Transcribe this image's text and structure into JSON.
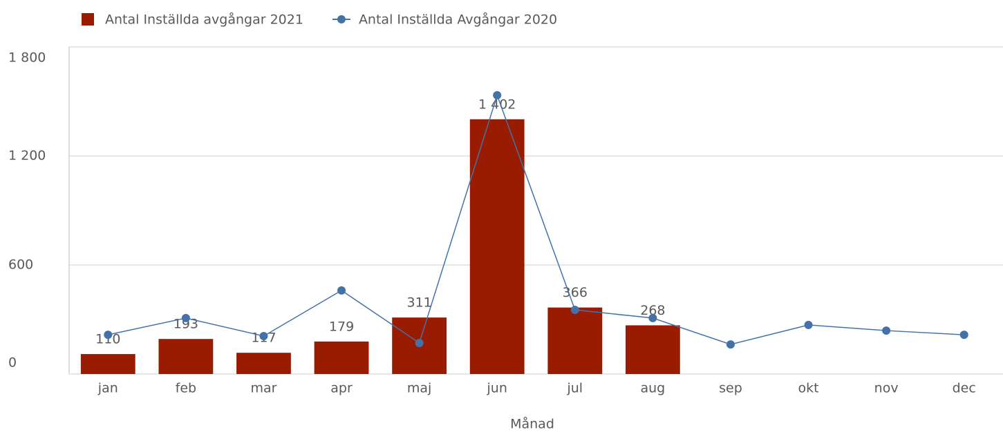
{
  "chart_data": {
    "type": "bar-line",
    "x_label": "Månad",
    "categories": [
      "jan",
      "feb",
      "mar",
      "apr",
      "maj",
      "jun",
      "jul",
      "aug",
      "sep",
      "okt",
      "nov",
      "dec"
    ],
    "series": [
      {
        "name": "Antal Inställda avgångar 2021",
        "type": "bar",
        "color": "#991c00",
        "values": [
          110,
          193,
          117,
          179,
          311,
          1402,
          366,
          268,
          null,
          null,
          null,
          null
        ],
        "value_labels": [
          "110",
          "193",
          "117",
          "179",
          "311",
          "1 402",
          "366",
          "268",
          null,
          null,
          null,
          null
        ]
      },
      {
        "name": "Antal Inställda Avgångar 2020",
        "type": "line",
        "color": "#4472a8",
        "values": [
          216,
          308,
          209,
          460,
          171,
          1534,
          353,
          308,
          163,
          270,
          239,
          216
        ]
      }
    ],
    "ylim": [
      0,
      1800
    ],
    "yticks": [
      0,
      600,
      {
        "value": 1200,
        "label": "1 200"
      },
      {
        "value": 1800,
        "label": "1 800"
      }
    ],
    "grid": true
  }
}
